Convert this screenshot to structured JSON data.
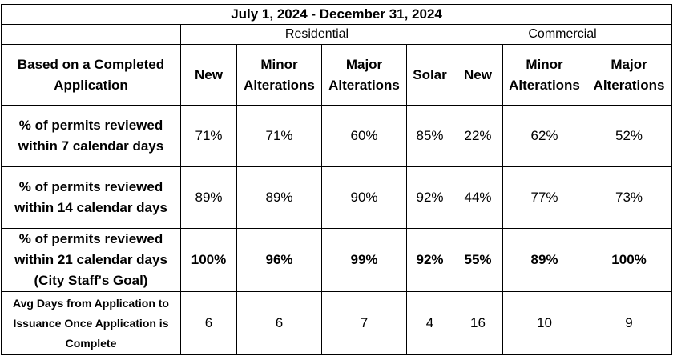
{
  "title": "July 1, 2024 - December 31, 2024",
  "groups": {
    "residential": "Residential",
    "commercial": "Commercial"
  },
  "header": {
    "row_label": "Based on a Completed Application",
    "columns": [
      "New",
      "Minor Alterations",
      "Major Alterations",
      "Solar",
      "New",
      "Minor Alterations",
      "Major Alterations"
    ]
  },
  "rows": [
    {
      "label": "% of permits reviewed within 7 calendar days",
      "values": [
        "71%",
        "71%",
        "60%",
        "85%",
        "22%",
        "62%",
        "52%"
      ]
    },
    {
      "label": "% of permits reviewed within 14 calendar days",
      "values": [
        "89%",
        "89%",
        "90%",
        "92%",
        "44%",
        "77%",
        "73%"
      ]
    },
    {
      "label": "% of permits reviewed within 21 calendar days (City Staff's Goal)",
      "values": [
        "100%",
        "96%",
        "99%",
        "92%",
        "55%",
        "89%",
        "100%"
      ]
    },
    {
      "label": "Avg Days from Application to Issuance Once Application is Complete",
      "values": [
        "6",
        "6",
        "7",
        "4",
        "16",
        "10",
        "9"
      ]
    }
  ]
}
